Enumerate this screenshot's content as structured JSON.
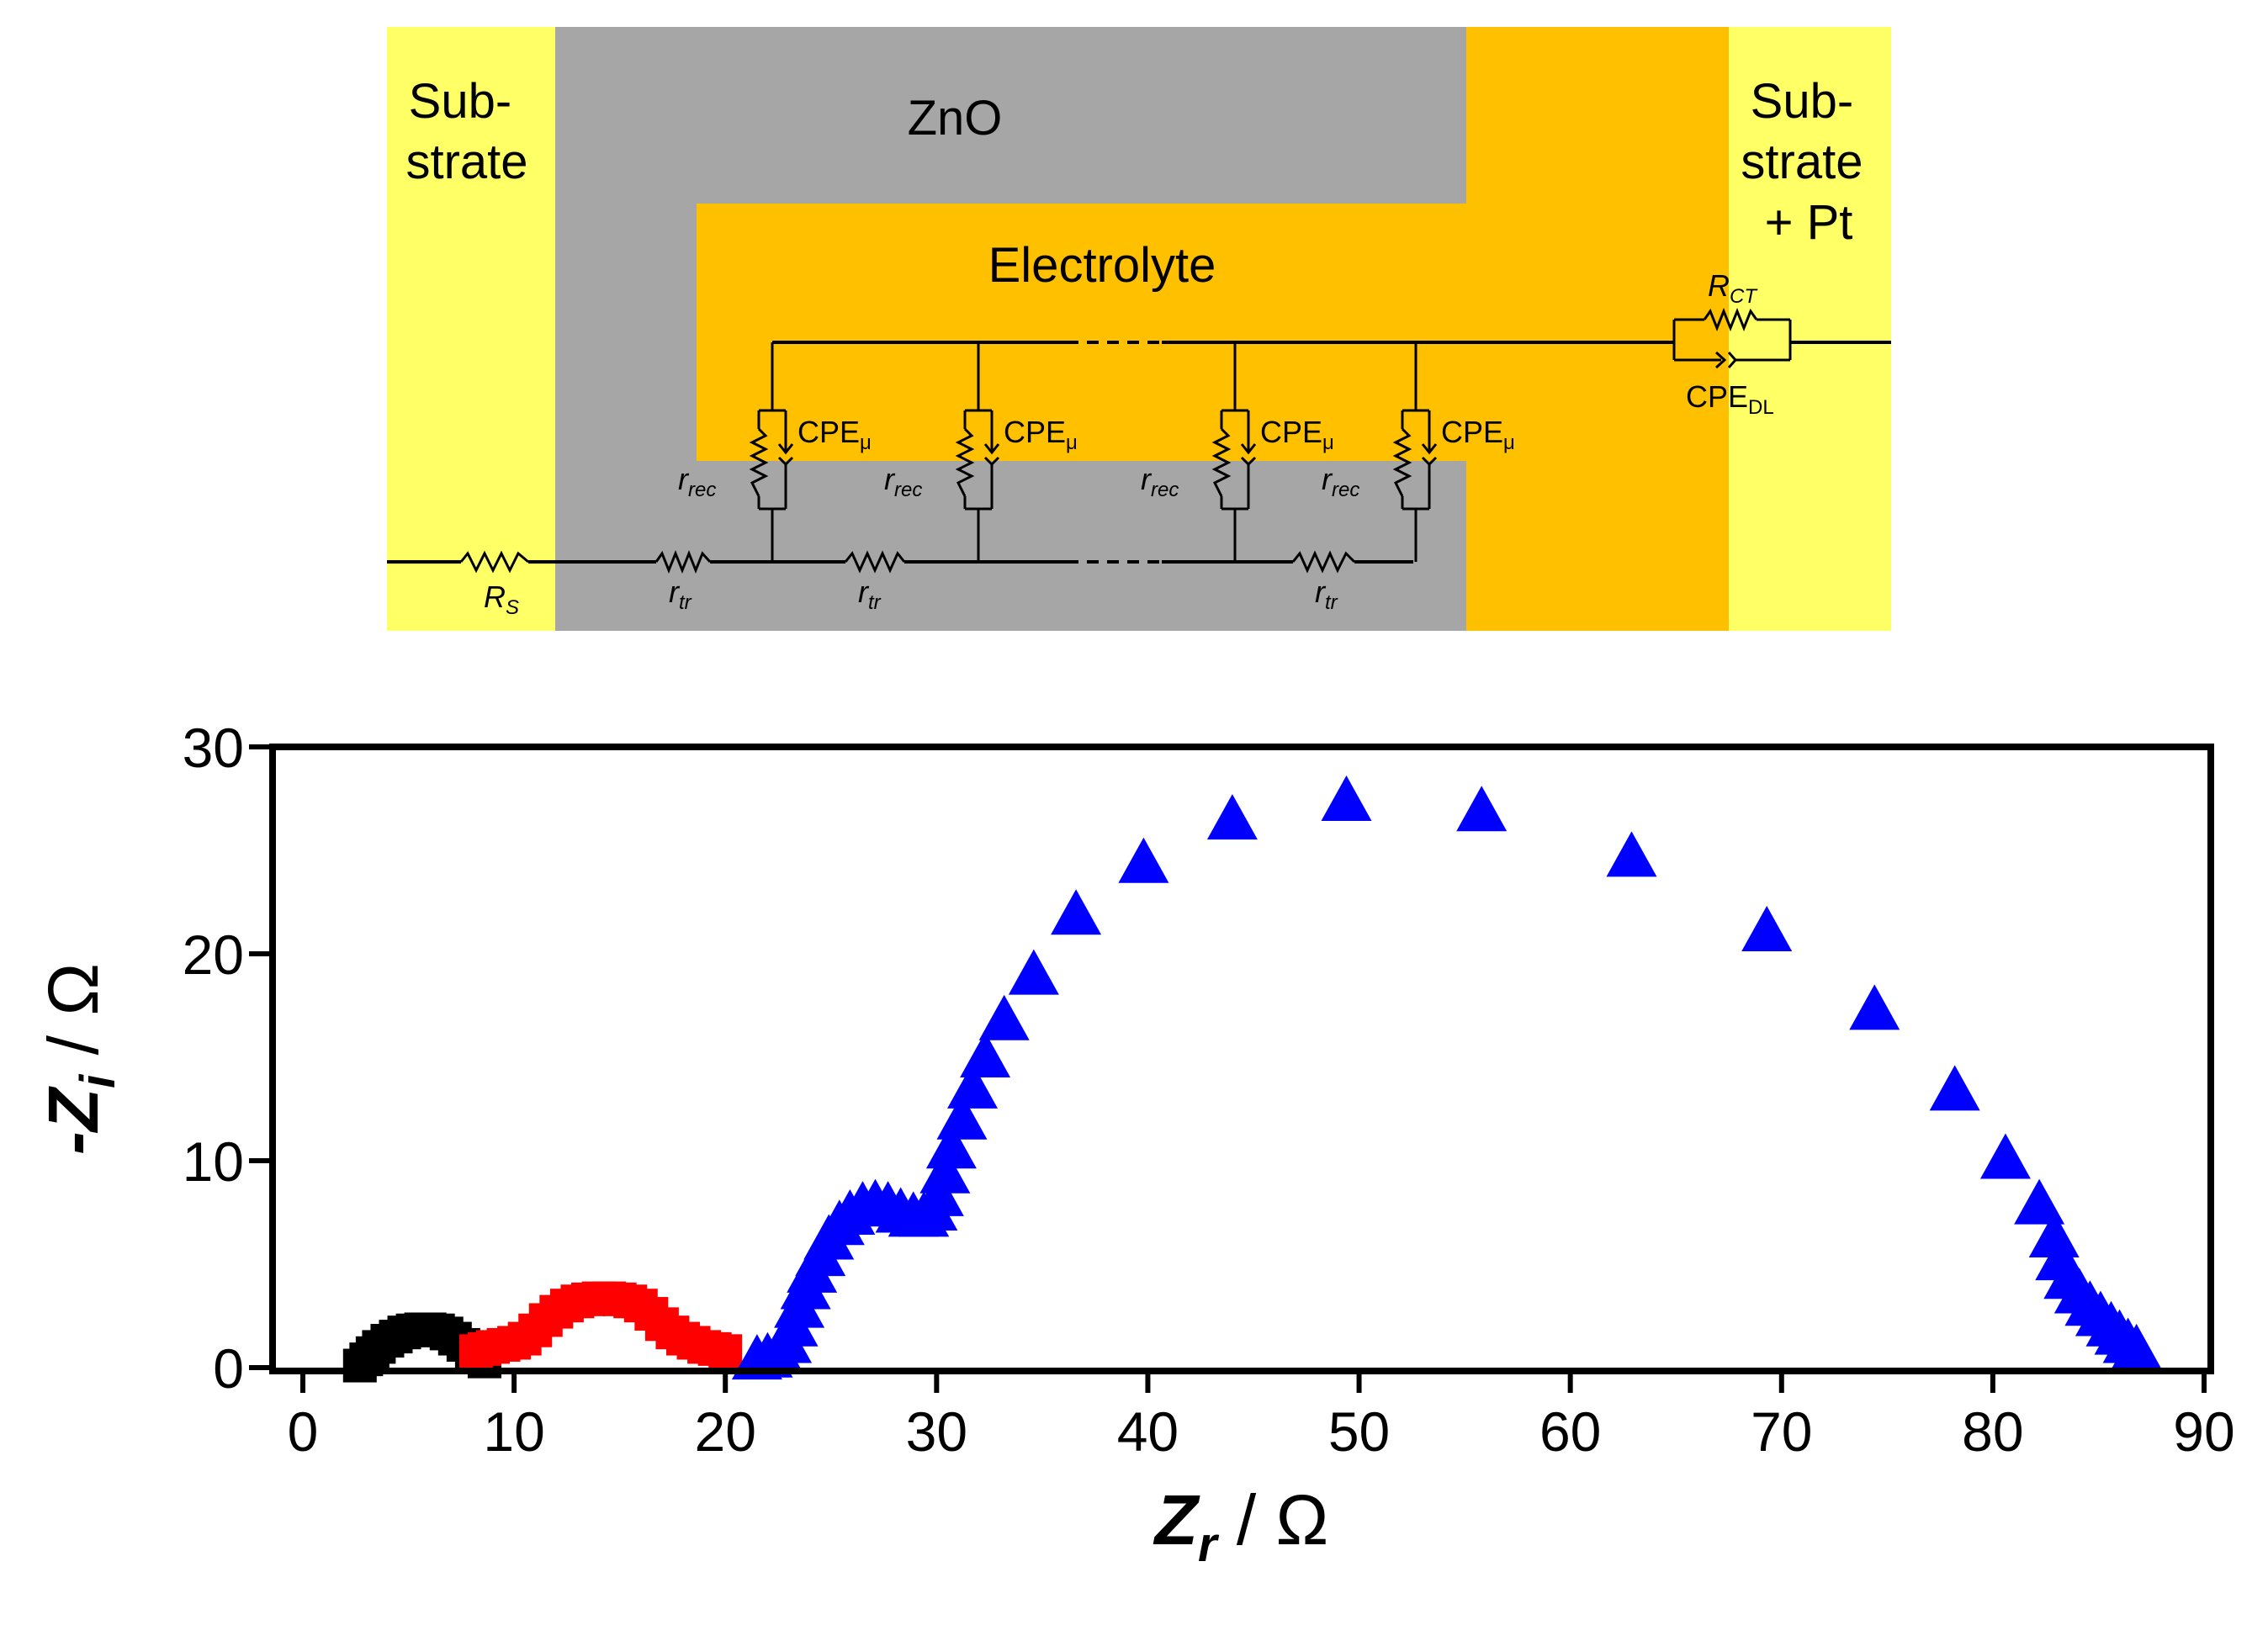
{
  "diagram": {
    "substrate_left": [
      "Sub-",
      "strate"
    ],
    "substrate_right": [
      "Sub-",
      "strate",
      "+ Pt"
    ],
    "zno_label": "ZnO",
    "electrolyte_label": "Electrolyte",
    "rs": {
      "main": "R",
      "sub": "S"
    },
    "rtr": {
      "main": "r",
      "sub": "tr"
    },
    "rrec": {
      "main": "r",
      "sub": "rec"
    },
    "cpe_mu": {
      "main": "CPE",
      "sub": "μ"
    },
    "rct": {
      "main": "R",
      "sub": "CT"
    },
    "cpe_dl": {
      "main": "CPE",
      "sub": "DL"
    },
    "colors": {
      "substrate": "#ffff66",
      "zno": "#a6a6a6",
      "electrolyte": "#ffc000",
      "wire": "#000000"
    }
  },
  "chart_data": {
    "type": "scatter",
    "title": "",
    "xlabel": {
      "main": "Z",
      "sub": "r",
      "unit": " / Ω"
    },
    "ylabel": {
      "main": "-Z",
      "sub": "i",
      "unit": " / Ω"
    },
    "xlim": [
      0,
      90
    ],
    "ylim": [
      0,
      30
    ],
    "xticks": [
      0,
      10,
      20,
      30,
      40,
      50,
      60,
      70,
      80,
      90
    ],
    "yticks": [
      0,
      10,
      20,
      30
    ],
    "grid": false,
    "series": [
      {
        "name": "black",
        "marker": "square",
        "color": "#000000",
        "points": [
          [
            2.7,
            0.1
          ],
          [
            3.0,
            0.4
          ],
          [
            3.3,
            0.7
          ],
          [
            3.6,
            1.0
          ],
          [
            4.0,
            1.3
          ],
          [
            4.4,
            1.5
          ],
          [
            4.8,
            1.7
          ],
          [
            5.2,
            1.8
          ],
          [
            5.6,
            1.85
          ],
          [
            6.0,
            1.85
          ],
          [
            6.4,
            1.8
          ],
          [
            6.8,
            1.65
          ],
          [
            7.2,
            1.4
          ],
          [
            7.6,
            1.1
          ],
          [
            8.0,
            0.8
          ],
          [
            8.3,
            0.5
          ],
          [
            8.6,
            0.3
          ]
        ]
      },
      {
        "name": "red",
        "marker": "square",
        "color": "#ff0000",
        "points": [
          [
            8.2,
            0.8
          ],
          [
            8.6,
            0.9
          ],
          [
            9.0,
            1.0
          ],
          [
            9.5,
            1.1
          ],
          [
            10.0,
            1.2
          ],
          [
            10.5,
            1.4
          ],
          [
            11.0,
            1.8
          ],
          [
            11.5,
            2.3
          ],
          [
            12.0,
            2.7
          ],
          [
            12.5,
            3.0
          ],
          [
            13.0,
            3.2
          ],
          [
            13.5,
            3.3
          ],
          [
            14.0,
            3.35
          ],
          [
            14.5,
            3.35
          ],
          [
            15.0,
            3.3
          ],
          [
            15.5,
            3.2
          ],
          [
            16.0,
            3.0
          ],
          [
            16.5,
            2.6
          ],
          [
            17.0,
            2.1
          ],
          [
            17.5,
            1.7
          ],
          [
            18.0,
            1.4
          ],
          [
            18.5,
            1.2
          ],
          [
            19.0,
            1.0
          ],
          [
            19.5,
            0.9
          ],
          [
            20.0,
            0.8
          ]
        ]
      },
      {
        "name": "blue",
        "marker": "triangle",
        "color": "#0000ff",
        "points": [
          [
            21.5,
            0.4
          ],
          [
            22.0,
            0.5
          ],
          [
            22.5,
            0.7
          ],
          [
            22.9,
            1.2
          ],
          [
            23.2,
            2.0
          ],
          [
            23.5,
            2.9
          ],
          [
            23.8,
            3.8
          ],
          [
            24.1,
            4.6
          ],
          [
            24.5,
            5.4
          ],
          [
            24.9,
            6.2
          ],
          [
            25.4,
            6.9
          ],
          [
            25.9,
            7.4
          ],
          [
            26.5,
            7.8
          ],
          [
            27.1,
            7.9
          ],
          [
            27.7,
            7.8
          ],
          [
            28.3,
            7.5
          ],
          [
            28.9,
            7.3
          ],
          [
            29.4,
            7.3
          ],
          [
            29.8,
            7.6
          ],
          [
            30.1,
            8.3
          ],
          [
            30.4,
            9.4
          ],
          [
            30.7,
            10.6
          ],
          [
            31.2,
            12.0
          ],
          [
            31.7,
            13.5
          ],
          [
            32.3,
            15.0
          ],
          [
            33.2,
            16.8
          ],
          [
            34.6,
            19.0
          ],
          [
            36.6,
            21.9
          ],
          [
            39.8,
            24.4
          ],
          [
            44.0,
            26.5
          ],
          [
            49.4,
            27.4
          ],
          [
            55.8,
            26.9
          ],
          [
            62.9,
            24.7
          ],
          [
            69.3,
            21.1
          ],
          [
            74.4,
            17.3
          ],
          [
            78.2,
            13.4
          ],
          [
            80.6,
            10.1
          ],
          [
            82.2,
            7.9
          ],
          [
            82.9,
            6.3
          ],
          [
            83.2,
            5.2
          ],
          [
            83.6,
            4.3
          ],
          [
            84.1,
            3.6
          ],
          [
            84.6,
            3.0
          ],
          [
            85.1,
            2.5
          ],
          [
            85.6,
            2.0
          ],
          [
            86.0,
            1.6
          ],
          [
            86.4,
            1.2
          ],
          [
            86.8,
            0.9
          ]
        ]
      }
    ]
  }
}
